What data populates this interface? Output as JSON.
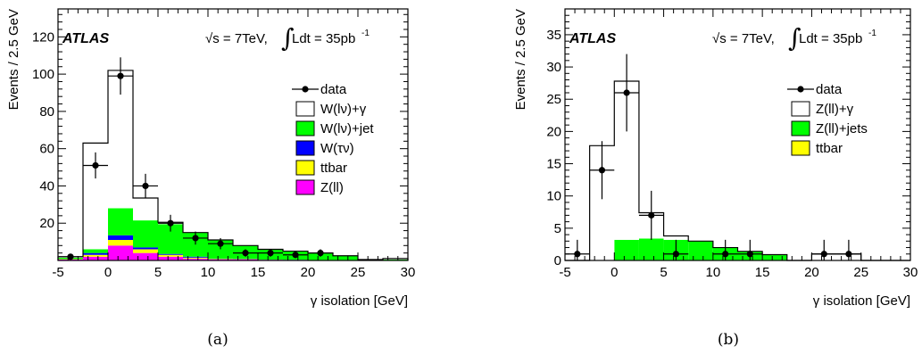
{
  "colors": {
    "w_gamma": "#ffffff",
    "w_jet": "#00ff00",
    "w_tau": "#0000ff",
    "ttbar": "#ffff00",
    "z_ll": "#ff00ff",
    "z_gamma": "#ffffff",
    "z_jets": "#00ff00",
    "data": "#000000"
  },
  "chart_data": [
    {
      "type": "bar",
      "caption": "(a)",
      "experiment": "ATLAS",
      "energy_label": "√s = 7TeV,",
      "lumi_prefix": "Ldt = 35pb",
      "lumi_exp": "-1",
      "xlabel": "γ isolation [GeV]",
      "ylabel": "Events / 2.5 GeV",
      "xlim": [
        -5,
        30
      ],
      "ylim": [
        0,
        135
      ],
      "xticks": [
        -5,
        0,
        5,
        10,
        15,
        20,
        25,
        30
      ],
      "yticks": [
        20,
        40,
        60,
        80,
        100,
        120
      ],
      "bin_width": 2.5,
      "bin_edges": [
        -5,
        -2.5,
        0,
        2.5,
        5,
        7.5,
        10,
        12.5,
        15,
        17.5,
        20,
        22.5,
        25,
        27.5,
        30
      ],
      "stack": [
        {
          "name": "Z(ll)",
          "color_key": "z_ll",
          "values": [
            0.5,
            2,
            8,
            4,
            2,
            1,
            0.5,
            0.5,
            0.3,
            0.2,
            0.1,
            0,
            0,
            0
          ]
        },
        {
          "name": "ttbar",
          "color_key": "ttbar",
          "values": [
            0.2,
            1,
            3,
            2,
            1,
            0.5,
            0.3,
            0.2,
            0.1,
            0.1,
            0,
            0,
            0,
            0
          ]
        },
        {
          "name": "W(τν)",
          "color_key": "w_tau",
          "values": [
            0.1,
            1,
            2.5,
            1,
            0.5,
            0.5,
            0.2,
            0.2,
            0.1,
            0.1,
            0,
            0,
            0,
            0
          ]
        },
        {
          "name": "W(lν)+jet",
          "color_key": "w_jet",
          "values": [
            0.7,
            2,
            14.5,
            14.5,
            16,
            13,
            10,
            7.1,
            5.5,
            4.6,
            3.9,
            2.5,
            0.5,
            0.5
          ]
        },
        {
          "name": "W(lν)+γ",
          "color_key": "w_gamma",
          "values": [
            0.5,
            57,
            74,
            12,
            1,
            0,
            0,
            0,
            0,
            0,
            0,
            0,
            0,
            0.5
          ]
        }
      ],
      "data": {
        "x": [
          -3.75,
          -1.25,
          1.25,
          3.75,
          6.25,
          8.75,
          11.25,
          13.75,
          16.25,
          18.75,
          21.25
        ],
        "y": [
          2,
          51,
          99,
          40,
          20,
          12,
          9,
          4,
          4,
          3,
          4
        ],
        "yerr": [
          1.5,
          7,
          10,
          6.5,
          4.5,
          3.5,
          3,
          2,
          2,
          1.8,
          2
        ]
      },
      "legend": [
        {
          "label": "data",
          "kind": "marker"
        },
        {
          "label": "W(lν)+γ",
          "kind": "box",
          "color_key": "w_gamma"
        },
        {
          "label": "W(lν)+jet",
          "kind": "box",
          "color_key": "w_jet"
        },
        {
          "label": "W(τν)",
          "kind": "box",
          "color_key": "w_tau"
        },
        {
          "label": "ttbar",
          "kind": "box",
          "color_key": "ttbar"
        },
        {
          "label": "Z(ll)",
          "kind": "box",
          "color_key": "z_ll"
        }
      ]
    },
    {
      "type": "bar",
      "caption": "(b)",
      "experiment": "ATLAS",
      "energy_label": "√s = 7TeV,",
      "lumi_prefix": "Ldt = 35pb",
      "lumi_exp": "-1",
      "xlabel": "γ isolation [GeV]",
      "ylabel": "Events / 2.5 GeV",
      "xlim": [
        -5,
        30
      ],
      "ylim": [
        0,
        39
      ],
      "xticks": [
        -5,
        0,
        5,
        10,
        15,
        20,
        25,
        30
      ],
      "yticks": [
        0,
        5,
        10,
        15,
        20,
        25,
        30,
        35
      ],
      "bin_width": 2.5,
      "bin_edges": [
        -5,
        -2.5,
        0,
        2.5,
        5,
        7.5,
        10,
        12.5,
        15,
        17.5,
        20,
        22.5,
        25,
        27.5,
        30
      ],
      "stack": [
        {
          "name": "ttbar",
          "color_key": "ttbar",
          "values": [
            0,
            0,
            0,
            0,
            0,
            0,
            0,
            0,
            0,
            0,
            0,
            0,
            0,
            0
          ]
        },
        {
          "name": "Z(ll)+jets",
          "color_key": "z_jets",
          "values": [
            0,
            0,
            3.2,
            3.4,
            3.2,
            3,
            2,
            1.4,
            0.9,
            0,
            0,
            0,
            0,
            0
          ]
        },
        {
          "name": "Z(ll)+γ",
          "color_key": "z_gamma",
          "values": [
            0,
            17.8,
            24.6,
            4,
            0.6,
            0,
            0,
            0,
            0,
            0,
            1,
            1,
            0,
            0
          ]
        }
      ],
      "data": {
        "x": [
          -3.75,
          -1.25,
          1.25,
          3.75,
          6.25,
          11.25,
          13.75,
          21.25,
          23.75
        ],
        "y": [
          1,
          14,
          26,
          7,
          1,
          1,
          1,
          1,
          1
        ],
        "yerr": [
          2.2,
          4.5,
          6,
          3.8,
          2.2,
          2.2,
          2.2,
          2.2,
          2.2
        ]
      },
      "legend": [
        {
          "label": "data",
          "kind": "marker"
        },
        {
          "label": "Z(ll)+γ",
          "kind": "box",
          "color_key": "z_gamma"
        },
        {
          "label": "Z(ll)+jets",
          "kind": "box",
          "color_key": "z_jets"
        },
        {
          "label": "ttbar",
          "kind": "box",
          "color_key": "ttbar"
        }
      ]
    }
  ]
}
